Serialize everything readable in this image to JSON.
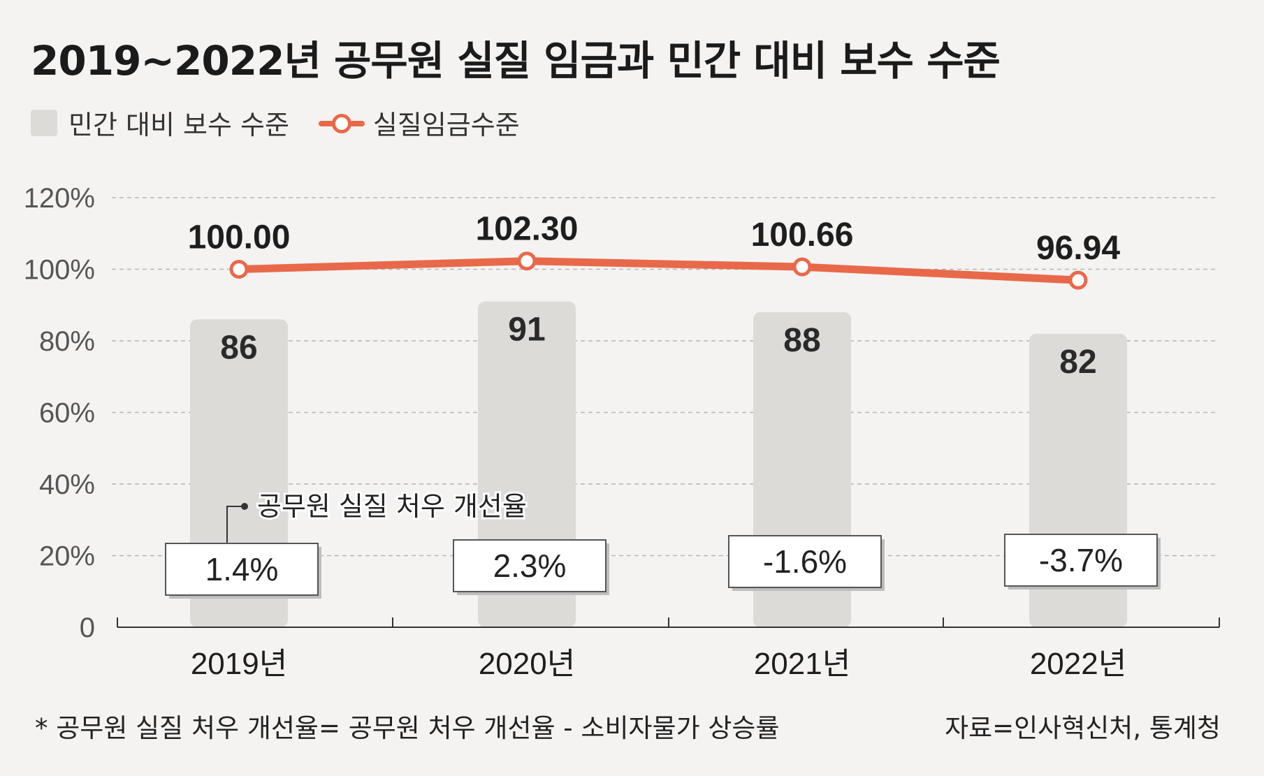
{
  "title": "2019~2022년 공무원 실질 임금과 민간 대비 보수 수준",
  "legend": {
    "bar_label": "민간 대비 보수 수준",
    "line_label": "실질임금수준"
  },
  "colors": {
    "bar": "#dcdbd8",
    "line": "#e8694a",
    "grid": "#b5b5b5",
    "text": "#1e1e1e",
    "axis_text": "#555555"
  },
  "chart_data": {
    "type": "bar",
    "categories": [
      "2019년",
      "2020년",
      "2021년",
      "2022년"
    ],
    "y_ticks": [
      "0",
      "20%",
      "40%",
      "60%",
      "80%",
      "100%",
      "120%"
    ],
    "ylim": [
      0,
      120
    ],
    "grid": true,
    "legend_position": "top-left",
    "series": [
      {
        "name": "민간 대비 보수 수준",
        "type": "bar",
        "values": [
          86,
          91,
          88,
          82
        ],
        "labels": [
          "86",
          "91",
          "88",
          "82"
        ]
      },
      {
        "name": "실질임금수준",
        "type": "line",
        "values": [
          100.0,
          102.3,
          100.66,
          96.94
        ],
        "labels": [
          "100.00",
          "102.30",
          "100.66",
          "96.94"
        ]
      }
    ],
    "annotation": {
      "label": "공무원 실질 처우 개선율",
      "values": [
        "1.4%",
        "2.3%",
        "-1.6%",
        "-3.7%"
      ]
    }
  },
  "footnote": "* 공무원 실질 처우 개선율= 공무원 처우 개선율 - 소비자물가 상승률",
  "source": "자료=인사혁신처, 통계청"
}
